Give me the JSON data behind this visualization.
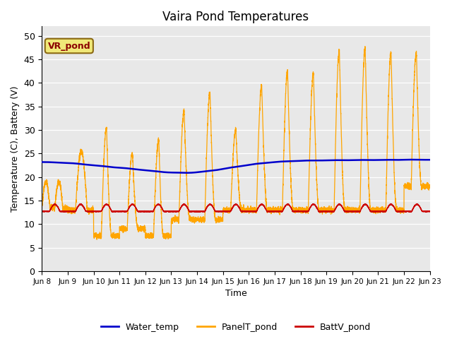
{
  "title": "Vaira Pond Temperatures",
  "xlabel": "Time",
  "ylabel": "Temperature (C), Battery (V)",
  "ylim": [
    0,
    52
  ],
  "yticks": [
    0,
    5,
    10,
    15,
    20,
    25,
    30,
    35,
    40,
    45,
    50
  ],
  "annotation_text": "VR_pond",
  "annotation_color": "#8B0000",
  "annotation_bg": "#f0e878",
  "bg_color": "#e8e8e8",
  "water_color": "#0000cc",
  "panel_color": "#FFA500",
  "batt_color": "#cc0000",
  "legend_labels": [
    "Water_temp",
    "PanelT_pond",
    "BattV_pond"
  ],
  "x_tick_labels": [
    "Jun 8",
    "Jun 9",
    "Jun 10",
    "Jun 11",
    "Jun 12",
    "Jun 13",
    "Jun 14",
    "Jun 15",
    "Jun 16",
    "Jun 17",
    "Jun 18",
    "Jun 19",
    "Jun 20",
    "Jun 21",
    "Jun 22",
    "Jun 23"
  ],
  "start_day": 8,
  "end_day": 23,
  "figsize": [
    6.4,
    4.8
  ],
  "dpi": 100
}
